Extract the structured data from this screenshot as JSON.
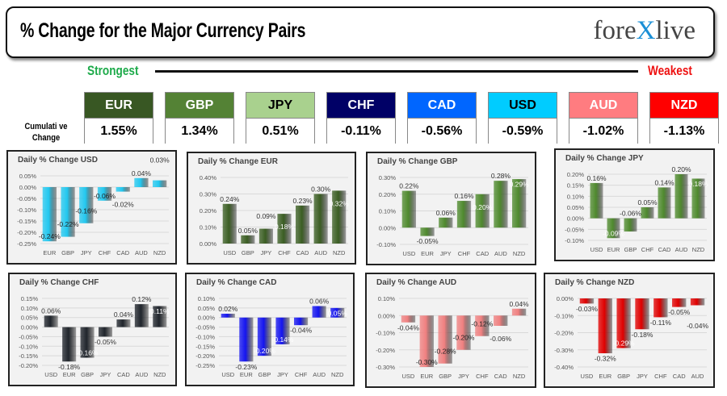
{
  "header": {
    "title": "% Change for the Major Currency Pairs",
    "logo": "forexlive"
  },
  "scale": {
    "strongest": "Strongest",
    "weakest": "Weakest"
  },
  "cumulative_label_1": "Cumulati ve",
  "cumulative_label_2": "Change",
  "tiles": [
    {
      "code": "EUR",
      "value": "1.55%",
      "color": "#385723",
      "text": "#ffffff"
    },
    {
      "code": "GBP",
      "value": "1.34%",
      "color": "#548235",
      "text": "#ffffff"
    },
    {
      "code": "JPY",
      "value": "0.51%",
      "color": "#a9d18e",
      "text": "#000000"
    },
    {
      "code": "CHF",
      "value": "-0.11%",
      "color": "#000066",
      "text": "#ffffff"
    },
    {
      "code": "CAD",
      "value": "-0.56%",
      "color": "#0066ff",
      "text": "#ffffff"
    },
    {
      "code": "USD",
      "value": "-0.59%",
      "color": "#00ccff",
      "text": "#000000"
    },
    {
      "code": "AUD",
      "value": "-1.02%",
      "color": "#ff7c80",
      "text": "#ffffff"
    },
    {
      "code": "NZD",
      "value": "-1.13%",
      "color": "#ff0000",
      "text": "#ffffff"
    }
  ],
  "chart_data": [
    {
      "type": "bar",
      "title": "Daily % Change USD",
      "categories": [
        "EUR",
        "GBP",
        "JPY",
        "CHF",
        "CAD",
        "AUD",
        "NZD"
      ],
      "values": [
        -0.24,
        -0.22,
        -0.16,
        -0.06,
        -0.02,
        0.04,
        0.03
      ],
      "ylim": [
        -0.25,
        0.05
      ],
      "ystep": 0.05,
      "color": "#22c8f0"
    },
    {
      "type": "bar",
      "title": "Daily % Change EUR",
      "categories": [
        "USD",
        "GBP",
        "JPY",
        "CHF",
        "CAD",
        "AUD",
        "NZD"
      ],
      "values": [
        0.24,
        0.05,
        0.09,
        0.18,
        0.23,
        0.3,
        0.32
      ],
      "ylim": [
        0,
        0.4
      ],
      "ystep": 0.1,
      "color": "#3b5e23"
    },
    {
      "type": "bar",
      "title": "Daily % Change GBP",
      "categories": [
        "USD",
        "EUR",
        "JPY",
        "CHF",
        "CAD",
        "AUD",
        "NZD"
      ],
      "values": [
        0.22,
        -0.05,
        0.06,
        0.16,
        0.2,
        0.28,
        0.29
      ],
      "ylim": [
        -0.1,
        0.3
      ],
      "ystep": 0.1,
      "color": "#4f8a2e"
    },
    {
      "type": "bar",
      "title": "Daily % Change JPY",
      "categories": [
        "USD",
        "EUR",
        "GBP",
        "CHF",
        "CAD",
        "AUD",
        "NZD"
      ],
      "values": [
        0.16,
        -0.09,
        -0.06,
        0.05,
        0.14,
        0.2,
        0.18
      ],
      "ylim": [
        -0.1,
        0.2
      ],
      "ystep": 0.05,
      "color": "#4f8a2e"
    },
    {
      "type": "bar",
      "title": "Daily % Change CHF",
      "categories": [
        "USD",
        "EUR",
        "GBP",
        "JPY",
        "CAD",
        "AUD",
        "NZD"
      ],
      "values": [
        0.06,
        -0.18,
        -0.16,
        -0.05,
        0.04,
        0.12,
        0.11
      ],
      "ylim": [
        -0.2,
        0.15
      ],
      "ystep": 0.05,
      "color": "#20252c"
    },
    {
      "type": "bar",
      "title": "Daily % Change CAD",
      "categories": [
        "USD",
        "EUR",
        "GBP",
        "JPY",
        "CHF",
        "AUD",
        "NZD"
      ],
      "values": [
        0.02,
        -0.23,
        -0.2,
        -0.14,
        -0.04,
        0.06,
        0.05
      ],
      "ylim": [
        -0.25,
        0.1
      ],
      "ystep": 0.05,
      "color": "#1414f0"
    },
    {
      "type": "bar",
      "title": "Daily % Change AUD",
      "categories": [
        "USD",
        "EUR",
        "GBP",
        "JPY",
        "CHF",
        "CAD",
        "NZD"
      ],
      "values": [
        -0.04,
        -0.3,
        -0.28,
        -0.2,
        -0.12,
        -0.06,
        0.04
      ],
      "ylim": [
        -0.3,
        0.1
      ],
      "ystep": 0.1,
      "color": "#f08080"
    },
    {
      "type": "bar",
      "title": "Daily % Change NZD",
      "categories": [
        "USD",
        "EUR",
        "GBP",
        "JPY",
        "CHF",
        "CAD",
        "AUD"
      ],
      "values": [
        -0.03,
        -0.32,
        -0.29,
        -0.18,
        -0.11,
        -0.05,
        -0.04
      ],
      "ylim": [
        -0.4,
        0.0
      ],
      "ystep": 0.1,
      "color": "#e00000"
    }
  ]
}
